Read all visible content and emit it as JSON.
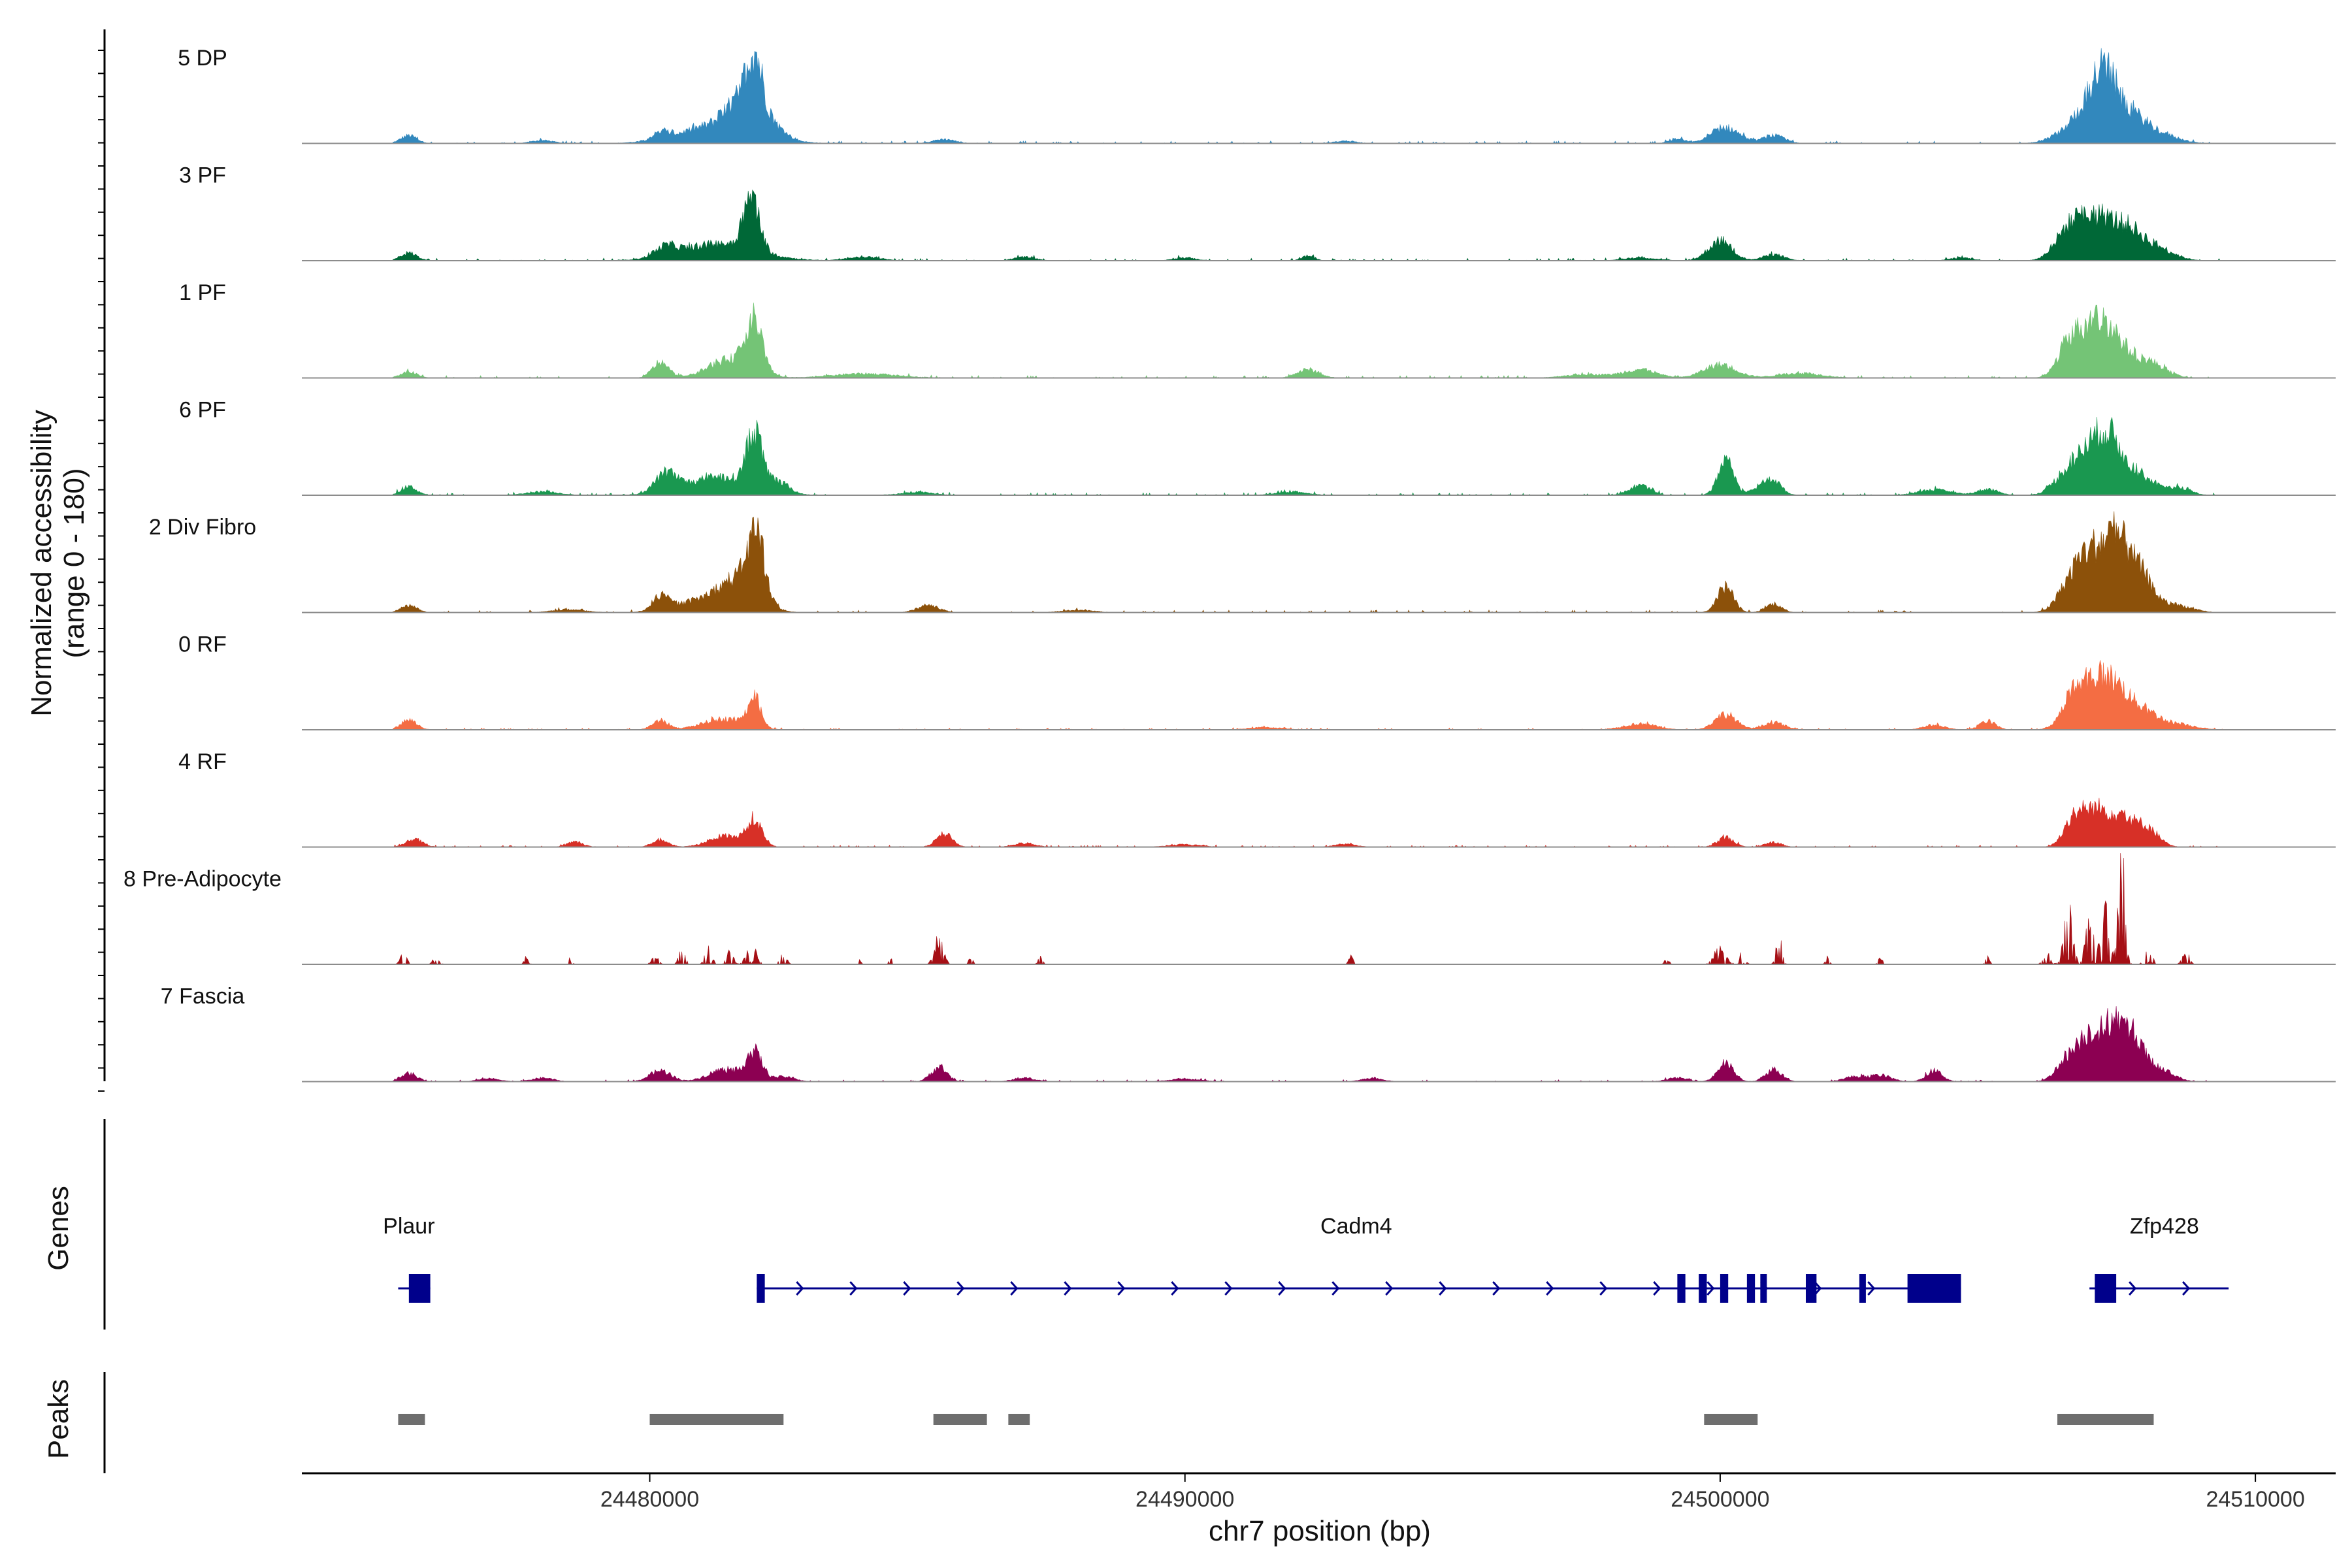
{
  "chart_data": {
    "type": "area",
    "title": "",
    "xlabel": "chr7 position (bp)",
    "ylabel": "Normalized accessibility",
    "ylabel_range": "(range 0 - 180)",
    "xlim": [
      24473500,
      24511500
    ],
    "xticks": [
      24480000,
      24490000,
      24500000,
      24510000
    ],
    "xtick_labels": [
      "24480000",
      "24490000",
      "24500000",
      "24510000"
    ],
    "ylim": [
      0,
      180
    ],
    "track_span": [
      24475200,
      24509400
    ],
    "tracks": [
      {
        "name": "5 DP",
        "color": "#3288bd",
        "noise": 4,
        "peaks": [
          [
            24475500,
            13,
            150
          ],
          [
            24478000,
            5,
            200
          ],
          [
            24480200,
            11,
            150
          ],
          [
            24481300,
            30,
            700
          ],
          [
            24481800,
            55,
            300
          ],
          [
            24481960,
            82,
            140
          ],
          [
            24482300,
            14,
            250
          ],
          [
            24485500,
            7,
            200
          ],
          [
            24493000,
            4,
            200
          ],
          [
            24499200,
            7,
            150
          ],
          [
            24500100,
            26,
            260
          ],
          [
            24501000,
            13,
            200
          ],
          [
            24506500,
            17,
            300
          ],
          [
            24507000,
            62,
            300
          ],
          [
            24507200,
            64,
            220
          ],
          [
            24507700,
            44,
            300
          ],
          [
            24508300,
            12,
            300
          ]
        ]
      },
      {
        "name": "3 PF",
        "color": "#006837",
        "noise": 4,
        "peaks": [
          [
            24475500,
            13,
            150
          ],
          [
            24480300,
            16,
            200
          ],
          [
            24481300,
            28,
            700
          ],
          [
            24481900,
            87,
            150
          ],
          [
            24484000,
            6,
            300
          ],
          [
            24487000,
            6,
            200
          ],
          [
            24490000,
            5,
            200
          ],
          [
            24492300,
            8,
            120
          ],
          [
            24498500,
            5,
            300
          ],
          [
            24500000,
            33,
            220
          ],
          [
            24501000,
            10,
            200
          ],
          [
            24504500,
            5,
            200
          ],
          [
            24506500,
            45,
            250
          ],
          [
            24507000,
            64,
            300
          ],
          [
            24507600,
            50,
            300
          ],
          [
            24508200,
            18,
            300
          ]
        ]
      },
      {
        "name": "1 PF",
        "color": "#74c476",
        "noise": 4,
        "peaks": [
          [
            24475500,
            10,
            150
          ],
          [
            24480200,
            26,
            150
          ],
          [
            24481500,
            30,
            400
          ],
          [
            24481950,
            82,
            160
          ],
          [
            24484000,
            7,
            600
          ],
          [
            24492300,
            14,
            200
          ],
          [
            24497500,
            6,
            400
          ],
          [
            24498500,
            14,
            300
          ],
          [
            24500000,
            22,
            300
          ],
          [
            24501500,
            8,
            400
          ],
          [
            24506500,
            40,
            200
          ],
          [
            24506900,
            62,
            300
          ],
          [
            24507300,
            60,
            300
          ],
          [
            24508000,
            26,
            300
          ]
        ]
      },
      {
        "name": "6 PF",
        "color": "#1a9850",
        "noise": 4,
        "peaks": [
          [
            24475500,
            14,
            150
          ],
          [
            24478000,
            6,
            300
          ],
          [
            24480300,
            31,
            200
          ],
          [
            24481300,
            30,
            600
          ],
          [
            24481950,
            90,
            140
          ],
          [
            24482400,
            18,
            200
          ],
          [
            24485000,
            5,
            300
          ],
          [
            24492000,
            5,
            300
          ],
          [
            24498500,
            16,
            200
          ],
          [
            24500100,
            60,
            140
          ],
          [
            24500800,
            14,
            200
          ],
          [
            24501000,
            18,
            150
          ],
          [
            24504000,
            9,
            300
          ],
          [
            24505000,
            10,
            200
          ],
          [
            24506500,
            38,
            250
          ],
          [
            24506950,
            66,
            240
          ],
          [
            24507300,
            72,
            220
          ],
          [
            24507800,
            35,
            300
          ],
          [
            24508600,
            12,
            200
          ]
        ]
      },
      {
        "name": "2 Div Fibro",
        "color": "#8c510a",
        "noise": 4,
        "peaks": [
          [
            24475500,
            12,
            150
          ],
          [
            24478500,
            5,
            300
          ],
          [
            24480200,
            23,
            150
          ],
          [
            24481000,
            20,
            500
          ],
          [
            24481700,
            50,
            350
          ],
          [
            24482000,
            100,
            150
          ],
          [
            24485200,
            12,
            200
          ],
          [
            24488000,
            4,
            300
          ],
          [
            24500100,
            43,
            150
          ],
          [
            24501000,
            14,
            150
          ],
          [
            24506600,
            52,
            250
          ],
          [
            24507000,
            85,
            250
          ],
          [
            24507400,
            90,
            200
          ],
          [
            24507800,
            70,
            250
          ],
          [
            24508500,
            12,
            300
          ]
        ]
      },
      {
        "name": "0 RF",
        "color": "#f46d43",
        "noise": 3,
        "peaks": [
          [
            24475500,
            16,
            150
          ],
          [
            24480200,
            15,
            150
          ],
          [
            24481400,
            18,
            400
          ],
          [
            24481950,
            48,
            120
          ],
          [
            24491500,
            4,
            300
          ],
          [
            24498500,
            10,
            300
          ],
          [
            24500100,
            26,
            200
          ],
          [
            24501000,
            12,
            200
          ],
          [
            24504000,
            8,
            200
          ],
          [
            24505000,
            14,
            150
          ],
          [
            24506600,
            50,
            220
          ],
          [
            24507000,
            65,
            250
          ],
          [
            24507400,
            55,
            250
          ],
          [
            24507900,
            30,
            300
          ],
          [
            24508600,
            8,
            300
          ]
        ]
      },
      {
        "name": "4 RF",
        "color": "#d73027",
        "noise": 3,
        "peaks": [
          [
            24475600,
            13,
            150
          ],
          [
            24478600,
            8,
            150
          ],
          [
            24480200,
            12,
            150
          ],
          [
            24481400,
            18,
            300
          ],
          [
            24481950,
            42,
            150
          ],
          [
            24485500,
            21,
            150
          ],
          [
            24487000,
            6,
            200
          ],
          [
            24490000,
            4,
            300
          ],
          [
            24493000,
            5,
            200
          ],
          [
            24500100,
            16,
            150
          ],
          [
            24501000,
            8,
            150
          ],
          [
            24506600,
            45,
            180
          ],
          [
            24507000,
            55,
            220
          ],
          [
            24507500,
            50,
            250
          ],
          [
            24508000,
            28,
            200
          ]
        ]
      },
      {
        "name": "8 Pre-Adipocyte",
        "color": "#a50f15",
        "noise": 0,
        "peaks": [
          [
            24475400,
            15,
            60
          ],
          [
            24476000,
            10,
            60
          ],
          [
            24477700,
            12,
            40
          ],
          [
            24478500,
            10,
            40
          ],
          [
            24480100,
            14,
            60
          ],
          [
            24480600,
            20,
            60
          ],
          [
            24481100,
            28,
            60
          ],
          [
            24481500,
            22,
            60
          ],
          [
            24481900,
            43,
            80
          ],
          [
            24482500,
            15,
            60
          ],
          [
            24483900,
            8,
            40
          ],
          [
            24484500,
            8,
            40
          ],
          [
            24485400,
            40,
            80
          ],
          [
            24486000,
            10,
            40
          ],
          [
            24487300,
            12,
            40
          ],
          [
            24493100,
            12,
            40
          ],
          [
            24499000,
            10,
            40
          ],
          [
            24500000,
            30,
            100
          ],
          [
            24500400,
            20,
            60
          ],
          [
            24501100,
            48,
            50
          ],
          [
            24502000,
            12,
            40
          ],
          [
            24503000,
            14,
            40
          ],
          [
            24505000,
            12,
            40
          ],
          [
            24506100,
            20,
            60
          ],
          [
            24506500,
            85,
            80
          ],
          [
            24506900,
            60,
            80
          ],
          [
            24507200,
            88,
            80
          ],
          [
            24507500,
            170,
            60
          ],
          [
            24508000,
            35,
            60
          ],
          [
            24508700,
            25,
            60
          ]
        ]
      },
      {
        "name": "7 Fascia",
        "color": "#8c0052",
        "noise": 3,
        "peaks": [
          [
            24475500,
            13,
            150
          ],
          [
            24477000,
            5,
            200
          ],
          [
            24478000,
            6,
            200
          ],
          [
            24480200,
            18,
            200
          ],
          [
            24481400,
            20,
            300
          ],
          [
            24481950,
            47,
            150
          ],
          [
            24482500,
            8,
            200
          ],
          [
            24485400,
            23,
            150
          ],
          [
            24487000,
            6,
            200
          ],
          [
            24490000,
            4,
            300
          ],
          [
            24493500,
            5,
            200
          ],
          [
            24499200,
            6,
            200
          ],
          [
            24500100,
            30,
            150
          ],
          [
            24501000,
            20,
            150
          ],
          [
            24502500,
            8,
            200
          ],
          [
            24503000,
            10,
            200
          ],
          [
            24504000,
            18,
            150
          ],
          [
            24506500,
            40,
            200
          ],
          [
            24506900,
            72,
            180
          ],
          [
            24507300,
            85,
            180
          ],
          [
            24507700,
            75,
            200
          ],
          [
            24508200,
            20,
            250
          ]
        ]
      }
    ],
    "genes": [
      {
        "name": "Plaur",
        "start": 24475300,
        "end": 24475900,
        "strand": "-",
        "exons": [
          [
            24475500,
            24475900
          ]
        ]
      },
      {
        "name": "Cadm4",
        "start": 24482000,
        "end": 24504500,
        "strand": "+",
        "exons": [
          [
            24482000,
            24482150
          ],
          [
            24499200,
            24499350
          ],
          [
            24499600,
            24499750
          ],
          [
            24500000,
            24500150
          ],
          [
            24500500,
            24500650
          ],
          [
            24500750,
            24500850
          ],
          [
            24501600,
            24501800
          ],
          [
            24502600,
            24502700
          ],
          [
            24503500,
            24504500
          ]
        ]
      },
      {
        "name": "Zfp428",
        "start": 24506900,
        "end": 24509500,
        "strand": "+",
        "exons": [
          [
            24507000,
            24507400
          ]
        ]
      }
    ],
    "peak_regions": [
      [
        24475300,
        24475800
      ],
      [
        24480000,
        24482500
      ],
      [
        24485300,
        24486300
      ],
      [
        24486700,
        24487100
      ],
      [
        24499700,
        24500700
      ],
      [
        24506300,
        24508100
      ]
    ],
    "panel_labels": {
      "genes": "Genes",
      "peaks": "Peaks"
    },
    "colors": {
      "gene": "#00008b",
      "peak": "#6e6e6e",
      "baseline": "#8c8c8c",
      "axis": "#000000"
    }
  }
}
